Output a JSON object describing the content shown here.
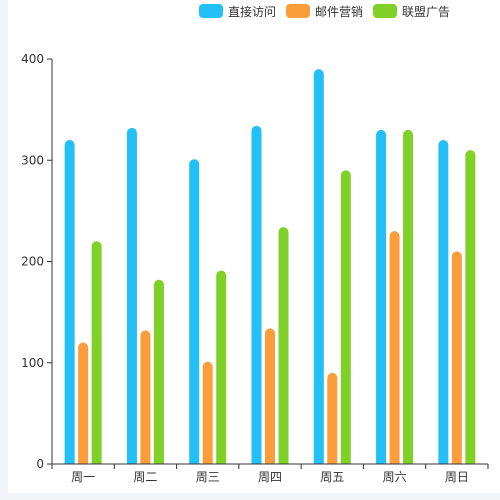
{
  "chart_data": {
    "type": "bar",
    "categories": [
      "周一",
      "周二",
      "周三",
      "周四",
      "周五",
      "周六",
      "周日"
    ],
    "series": [
      {
        "name": "直接访问",
        "color": "#22c0f7",
        "values": [
          320,
          332,
          301,
          334,
          390,
          330,
          320
        ]
      },
      {
        "name": "邮件营销",
        "color": "#fa9d3a",
        "values": [
          120,
          132,
          101,
          134,
          90,
          230,
          210
        ]
      },
      {
        "name": "联盟广告",
        "color": "#7fd128",
        "values": [
          220,
          182,
          191,
          234,
          290,
          330,
          310
        ]
      }
    ],
    "ylim": [
      0,
      400
    ],
    "yticks": [
      0,
      100,
      200,
      300,
      400
    ],
    "grid": false,
    "legend_position": "top-right"
  }
}
